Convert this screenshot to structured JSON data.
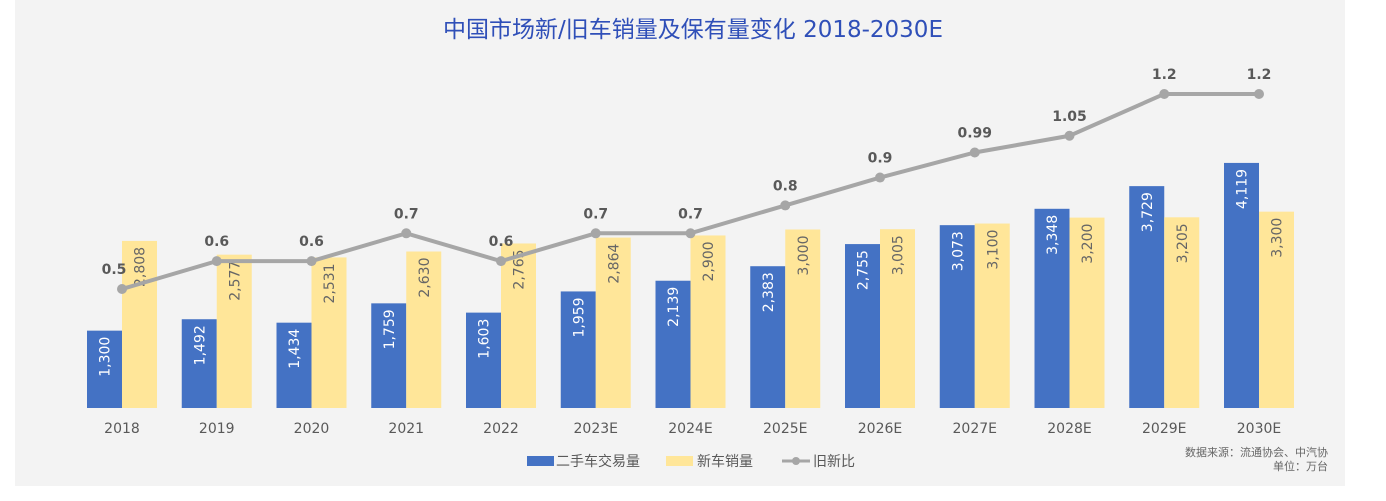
{
  "chart_data": {
    "type": "bar+line",
    "title": "中国市场新/旧车销量及保有量变化 2018-2030E",
    "categories": [
      "2018",
      "2019",
      "2020",
      "2021",
      "2022",
      "2023E",
      "2024E",
      "2025E",
      "2026E",
      "2027E",
      "2028E",
      "2029E",
      "2030E"
    ],
    "series": [
      {
        "name": "二手车交易量",
        "type": "bar",
        "color": "#4472c4",
        "values": [
          1300,
          1492,
          1434,
          1759,
          1603,
          1959,
          2139,
          2383,
          2755,
          3073,
          3348,
          3729,
          4119
        ],
        "labels": [
          "1,300",
          "1,492",
          "1,434",
          "1,759",
          "1,603",
          "1,959",
          "2,139",
          "2,383",
          "2,755",
          "3,073",
          "3,348",
          "3,729",
          "4,119"
        ]
      },
      {
        "name": "新车销量",
        "type": "bar",
        "color": "#ffe699",
        "values": [
          2808,
          2577,
          2531,
          2630,
          2765,
          2864,
          2900,
          3000,
          3005,
          3100,
          3200,
          3205,
          3300
        ],
        "labels": [
          "2,808",
          "2,577",
          "2,531",
          "2,630",
          "2,765",
          "2,864",
          "2,900",
          "3,000",
          "3,005",
          "3,100",
          "3,200",
          "3,205",
          "3,300"
        ]
      },
      {
        "name": "旧新比",
        "type": "line",
        "color": "#a6a6a6",
        "values": [
          0.5,
          0.6,
          0.6,
          0.7,
          0.6,
          0.7,
          0.7,
          0.8,
          0.9,
          0.99,
          1.05,
          1.2,
          1.2
        ],
        "labels": [
          "0.5",
          "0.6",
          "0.6",
          "0.7",
          "0.6",
          "0.7",
          "0.7",
          "0.8",
          "0.9",
          "0.99",
          "1.05",
          "1.2",
          "1.2"
        ]
      }
    ],
    "legend": "bottom",
    "grid": false
  },
  "source": "数据来源：流通协会、中汽协",
  "unit": "单位：万台"
}
